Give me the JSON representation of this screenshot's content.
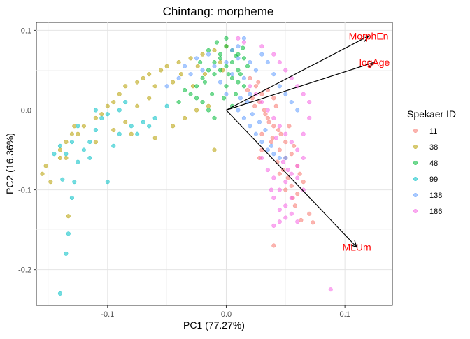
{
  "chart_data": {
    "type": "scatter",
    "title": "Chintang: morpheme",
    "xlabel": "PC1 (77.27%)",
    "ylabel": "PC2 (16.36%)",
    "xlim": [
      -0.16,
      0.14
    ],
    "ylim": [
      -0.245,
      0.11
    ],
    "x_ticks": [
      -0.1,
      0.0,
      0.1
    ],
    "x_tick_labels": [
      "-0.1",
      "0.0",
      "0.1"
    ],
    "y_ticks": [
      -0.2,
      -0.1,
      0.0,
      0.1
    ],
    "y_tick_labels": [
      "-0.2",
      "-0.1",
      "0.0",
      "0.1"
    ],
    "grid": true,
    "legend": {
      "title": "Spekaer ID",
      "position": "right"
    },
    "series": [
      {
        "name": "11",
        "color": "#F8766D",
        "points": [
          [
            0.025,
            0.03
          ],
          [
            0.03,
            0.02
          ],
          [
            0.028,
            0.01
          ],
          [
            0.032,
            0.0
          ],
          [
            0.035,
            -0.01
          ],
          [
            0.04,
            -0.02
          ],
          [
            0.03,
            -0.03
          ],
          [
            0.038,
            -0.04
          ],
          [
            0.045,
            -0.05
          ],
          [
            0.05,
            -0.06
          ],
          [
            0.048,
            -0.075
          ],
          [
            0.052,
            -0.085
          ],
          [
            0.055,
            -0.095
          ],
          [
            0.06,
            -0.105
          ],
          [
            0.058,
            -0.12
          ],
          [
            0.07,
            -0.13
          ],
          [
            0.063,
            -0.138
          ],
          [
            0.073,
            -0.141
          ],
          [
            0.04,
            -0.17
          ],
          [
            0.02,
            0.04
          ],
          [
            0.027,
            0.035
          ],
          [
            0.035,
            0.025
          ],
          [
            0.04,
            0.015
          ],
          [
            0.042,
            0.005
          ],
          [
            0.036,
            -0.015
          ],
          [
            0.044,
            -0.025
          ],
          [
            0.05,
            -0.04
          ],
          [
            0.055,
            -0.055
          ],
          [
            0.06,
            -0.07
          ],
          [
            0.062,
            -0.08
          ],
          [
            0.065,
            -0.09
          ],
          [
            0.045,
            -0.08
          ],
          [
            0.05,
            -0.1
          ],
          [
            0.056,
            -0.11
          ],
          [
            0.03,
            -0.05
          ],
          [
            0.028,
            -0.06
          ],
          [
            0.046,
            -0.03
          ],
          [
            0.022,
            0.015
          ],
          [
            0.018,
            0.025
          ],
          [
            0.033,
            -0.005
          ],
          [
            0.039,
            -0.035
          ],
          [
            0.043,
            -0.065
          ],
          [
            0.057,
            -0.045
          ],
          [
            0.053,
            -0.02
          ],
          [
            0.024,
            0.005
          ]
        ]
      },
      {
        "name": "38",
        "color": "#B79F00",
        "points": [
          [
            -0.155,
            -0.08
          ],
          [
            -0.152,
            -0.07
          ],
          [
            -0.148,
            -0.09
          ],
          [
            -0.14,
            -0.06
          ],
          [
            -0.14,
            -0.05
          ],
          [
            -0.135,
            -0.06
          ],
          [
            -0.135,
            -0.04
          ],
          [
            -0.13,
            -0.03
          ],
          [
            -0.128,
            -0.02
          ],
          [
            -0.12,
            -0.02
          ],
          [
            -0.125,
            -0.03
          ],
          [
            -0.11,
            -0.01
          ],
          [
            -0.105,
            -0.005
          ],
          [
            -0.1,
            0.005
          ],
          [
            -0.095,
            0.01
          ],
          [
            -0.09,
            0.02
          ],
          [
            -0.085,
            0.03
          ],
          [
            -0.075,
            0.035
          ],
          [
            -0.07,
            0.04
          ],
          [
            -0.065,
            0.045
          ],
          [
            -0.055,
            0.05
          ],
          [
            -0.05,
            0.055
          ],
          [
            -0.04,
            0.06
          ],
          [
            -0.03,
            0.065
          ],
          [
            -0.02,
            0.07
          ],
          [
            -0.01,
            0.075
          ],
          [
            -0.133,
            -0.133
          ],
          [
            -0.08,
            -0.03
          ],
          [
            -0.06,
            -0.035
          ],
          [
            -0.045,
            -0.02
          ],
          [
            -0.035,
            -0.01
          ],
          [
            -0.025,
            0.0
          ],
          [
            -0.015,
            0.005
          ],
          [
            -0.01,
            -0.05
          ],
          [
            -0.11,
            -0.04
          ],
          [
            -0.095,
            -0.025
          ],
          [
            -0.085,
            -0.015
          ],
          [
            -0.075,
            0.005
          ],
          [
            -0.065,
            0.015
          ],
          [
            -0.06,
            0.03
          ],
          [
            -0.045,
            0.035
          ],
          [
            -0.038,
            0.045
          ],
          [
            -0.028,
            0.03
          ],
          [
            -0.018,
            0.045
          ],
          [
            -0.005,
            0.06
          ],
          [
            0.0,
            0.08
          ],
          [
            -0.003,
            0.05
          ],
          [
            -0.024,
            0.055
          ]
        ]
      },
      {
        "name": "48",
        "color": "#00BA38",
        "points": [
          [
            -0.03,
            0.02
          ],
          [
            -0.025,
            0.03
          ],
          [
            -0.02,
            0.04
          ],
          [
            -0.015,
            0.05
          ],
          [
            -0.01,
            0.06
          ],
          [
            -0.005,
            0.07
          ],
          [
            0.0,
            0.08
          ],
          [
            0.005,
            0.075
          ],
          [
            0.01,
            0.07
          ],
          [
            0.015,
            0.065
          ],
          [
            -0.01,
            0.045
          ],
          [
            -0.005,
            0.05
          ],
          [
            0.0,
            0.055
          ],
          [
            0.005,
            0.06
          ],
          [
            0.01,
            0.05
          ],
          [
            -0.02,
            0.01
          ],
          [
            -0.015,
            0.0
          ],
          [
            -0.01,
            -0.01
          ],
          [
            0.0,
            0.03
          ],
          [
            0.005,
            0.04
          ],
          [
            0.01,
            0.035
          ],
          [
            0.015,
            0.03
          ],
          [
            -0.035,
            0.025
          ],
          [
            -0.04,
            0.01
          ],
          [
            -0.025,
            0.015
          ],
          [
            -0.012,
            0.02
          ],
          [
            -0.002,
            0.015
          ],
          [
            0.008,
            0.02
          ],
          [
            0.012,
            0.045
          ],
          [
            0.018,
            0.055
          ],
          [
            -0.008,
            0.085
          ],
          [
            0.0,
            0.09
          ],
          [
            -0.015,
            0.075
          ],
          [
            0.005,
            0.005
          ],
          [
            -0.005,
            0.065
          ],
          [
            0.002,
            0.045
          ],
          [
            -0.018,
            0.035
          ],
          [
            -0.022,
            0.06
          ],
          [
            0.008,
            0.068
          ],
          [
            0.014,
            0.078
          ]
        ]
      },
      {
        "name": "99",
        "color": "#00BFC4",
        "points": [
          [
            -0.14,
            -0.23
          ],
          [
            -0.135,
            -0.18
          ],
          [
            -0.133,
            -0.155
          ],
          [
            -0.13,
            -0.11
          ],
          [
            -0.128,
            -0.09
          ],
          [
            -0.14,
            -0.045
          ],
          [
            -0.135,
            -0.055
          ],
          [
            -0.125,
            -0.065
          ],
          [
            -0.12,
            -0.05
          ],
          [
            -0.115,
            -0.04
          ],
          [
            -0.11,
            -0.025
          ],
          [
            -0.105,
            -0.01
          ],
          [
            -0.1,
            -0.005
          ],
          [
            -0.09,
            0.0
          ],
          [
            -0.09,
            -0.03
          ],
          [
            -0.08,
            -0.02
          ],
          [
            -0.07,
            -0.015
          ],
          [
            -0.06,
            -0.01
          ],
          [
            -0.05,
            0.005
          ],
          [
            -0.11,
            0.0
          ],
          [
            -0.125,
            -0.02
          ],
          [
            -0.13,
            -0.04
          ],
          [
            -0.085,
            0.01
          ],
          [
            -0.1,
            -0.09
          ],
          [
            -0.138,
            -0.087
          ],
          [
            -0.145,
            -0.055
          ],
          [
            -0.115,
            -0.06
          ],
          [
            -0.095,
            -0.045
          ],
          [
            -0.075,
            -0.03
          ],
          [
            -0.065,
            -0.02
          ]
        ]
      },
      {
        "name": "138",
        "color": "#619CFF",
        "points": [
          [
            -0.05,
            0.03
          ],
          [
            -0.04,
            0.04
          ],
          [
            -0.03,
            0.045
          ],
          [
            -0.02,
            0.05
          ],
          [
            -0.01,
            0.055
          ],
          [
            0.0,
            0.06
          ],
          [
            0.01,
            0.065
          ],
          [
            0.02,
            0.06
          ],
          [
            0.025,
            0.05
          ],
          [
            0.015,
            0.04
          ],
          [
            0.02,
            0.02
          ],
          [
            0.01,
            0.0
          ],
          [
            0.015,
            -0.01
          ],
          [
            0.02,
            -0.02
          ],
          [
            0.025,
            -0.03
          ],
          [
            0.03,
            -0.04
          ],
          [
            0.035,
            -0.05
          ],
          [
            0.04,
            -0.055
          ],
          [
            0.045,
            -0.06
          ],
          [
            0.05,
            -0.06
          ],
          [
            0.005,
            0.045
          ],
          [
            -0.005,
            0.035
          ],
          [
            0.0,
            0.02
          ],
          [
            0.012,
            0.015
          ],
          [
            0.018,
            0.01
          ],
          [
            0.022,
            -0.005
          ],
          [
            0.028,
            -0.015
          ],
          [
            0.033,
            -0.025
          ],
          [
            0.038,
            -0.045
          ],
          [
            -0.035,
            0.055
          ],
          [
            -0.025,
            0.065
          ],
          [
            -0.015,
            0.07
          ],
          [
            0.005,
            0.075
          ],
          [
            0.03,
            0.07
          ],
          [
            0.035,
            0.06
          ],
          [
            0.04,
            0.045
          ],
          [
            0.045,
            0.03
          ],
          [
            0.05,
            0.02
          ],
          [
            0.055,
            0.01
          ],
          [
            0.06,
            0.0
          ],
          [
            0.01,
            0.08
          ],
          [
            0.015,
            0.09
          ]
        ]
      },
      {
        "name": "186",
        "color": "#F564E3",
        "points": [
          [
            0.02,
            0.03
          ],
          [
            0.025,
            0.02
          ],
          [
            0.03,
            0.01
          ],
          [
            0.035,
            0.0
          ],
          [
            0.04,
            -0.01
          ],
          [
            0.045,
            -0.02
          ],
          [
            0.05,
            -0.03
          ],
          [
            0.055,
            -0.04
          ],
          [
            0.06,
            -0.05
          ],
          [
            0.065,
            -0.06
          ],
          [
            0.06,
            -0.07
          ],
          [
            0.055,
            -0.08
          ],
          [
            0.05,
            -0.09
          ],
          [
            0.045,
            -0.1
          ],
          [
            0.04,
            -0.11
          ],
          [
            0.05,
            -0.12
          ],
          [
            0.055,
            -0.13
          ],
          [
            0.06,
            -0.14
          ],
          [
            0.045,
            -0.14
          ],
          [
            0.04,
            -0.145
          ],
          [
            0.088,
            -0.225
          ],
          [
            0.01,
            0.09
          ],
          [
            0.015,
            0.085
          ],
          [
            0.03,
            0.08
          ],
          [
            0.04,
            0.07
          ],
          [
            0.045,
            0.06
          ],
          [
            0.05,
            0.05
          ],
          [
            0.055,
            0.04
          ],
          [
            0.06,
            0.03
          ],
          [
            0.065,
            0.02
          ],
          [
            0.07,
            0.01
          ],
          [
            0.07,
            -0.01
          ],
          [
            0.065,
            -0.03
          ],
          [
            0.06,
            -0.085
          ],
          [
            0.065,
            -0.1
          ],
          [
            0.055,
            -0.11
          ],
          [
            0.03,
            -0.06
          ],
          [
            0.035,
            -0.075
          ],
          [
            0.04,
            -0.085
          ],
          [
            0.045,
            -0.125
          ],
          [
            0.05,
            -0.135
          ],
          [
            0.038,
            -0.1
          ],
          [
            0.042,
            -0.035
          ],
          [
            0.048,
            -0.065
          ],
          [
            0.052,
            -0.075
          ]
        ]
      }
    ],
    "vectors": [
      {
        "label": "MorphEn",
        "end": [
          0.12,
          0.093
        ],
        "color": "#FF0000"
      },
      {
        "label": "logAge",
        "end": [
          0.125,
          0.06
        ],
        "color": "#FF0000"
      },
      {
        "label": "MLUm",
        "end": [
          0.11,
          -0.172
        ],
        "color": "#FF0000"
      }
    ]
  }
}
